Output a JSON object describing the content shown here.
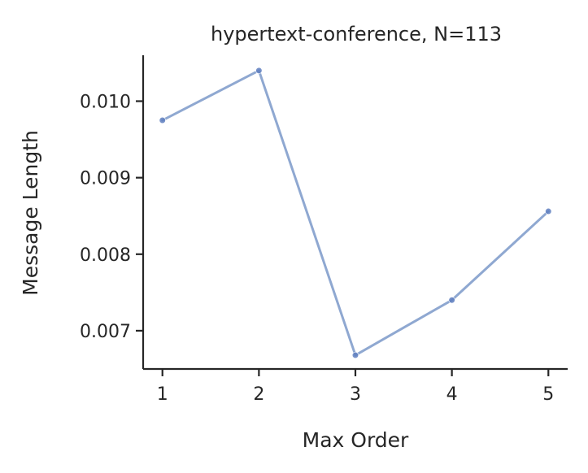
{
  "chart_data": {
    "type": "line",
    "title": "hypertext-conference, N=113",
    "xlabel": "Max Order",
    "ylabel": "Message Length",
    "x": [
      1,
      2,
      3,
      4,
      5
    ],
    "series": [
      {
        "values": [
          0.00975,
          0.0104,
          0.00668,
          0.0074,
          0.00856
        ]
      }
    ],
    "xticks": [
      1,
      2,
      3,
      4,
      5
    ],
    "xtick_labels": [
      "1",
      "2",
      "3",
      "4",
      "5"
    ],
    "yticks": [
      0.007,
      0.008,
      0.009,
      0.01
    ],
    "ytick_labels": [
      "0.007",
      "0.008",
      "0.009",
      "0.010"
    ],
    "xlim": [
      0.8,
      5.2
    ],
    "ylim": [
      0.0065,
      0.0106
    ],
    "grid": false,
    "colors": {
      "series": "#8fa8d1",
      "marker": "#5f7fbf",
      "axis": "#262626"
    }
  }
}
